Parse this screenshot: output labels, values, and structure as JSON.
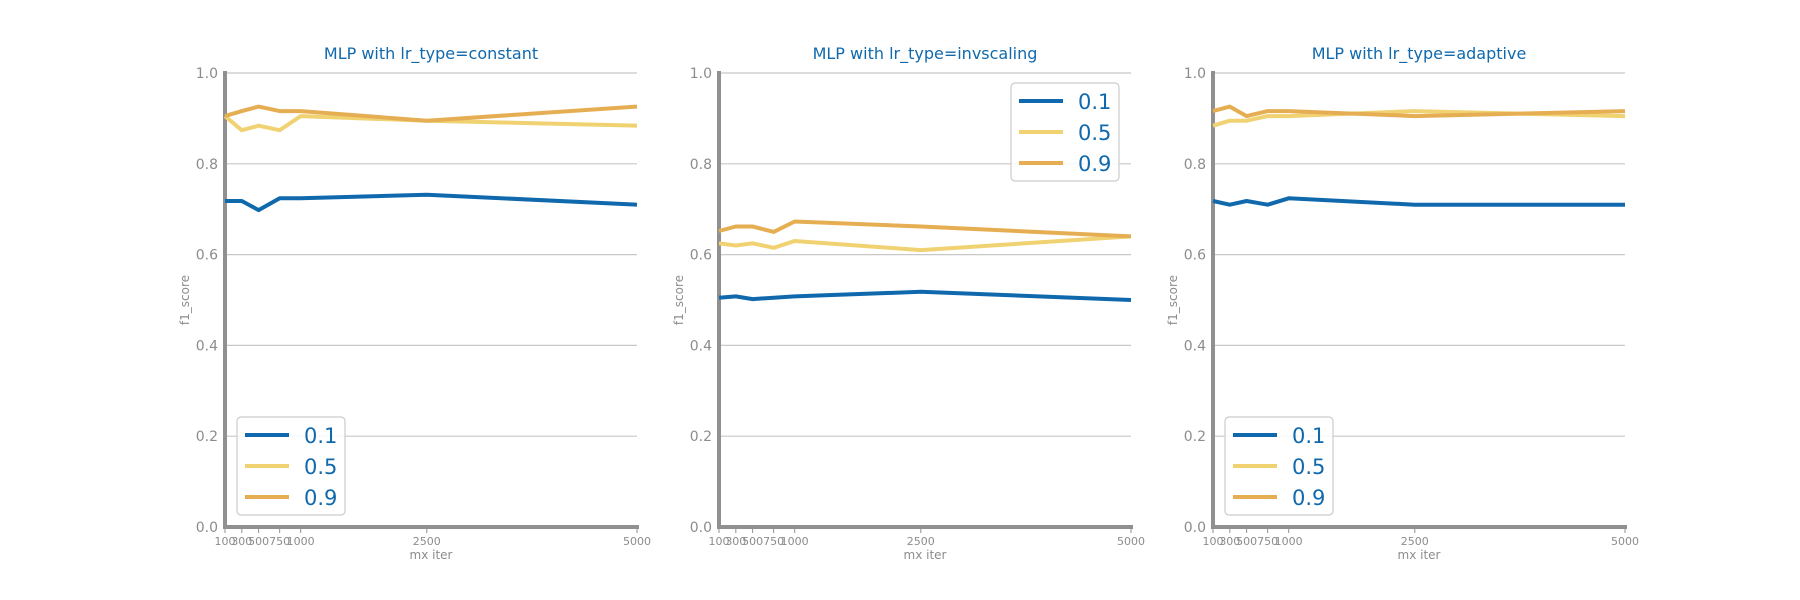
{
  "figure": {
    "background": "#ffffff",
    "title_color": "#1f77b4",
    "title_color_actual": "#1069ad",
    "axis_color": "#909090",
    "grid_color": "#c8c8c8",
    "tick_label_color": "#8c8c8c",
    "legend_text_color": "#1069ad",
    "legend_border_color": "#cccccc"
  },
  "chart_data": [
    {
      "type": "line",
      "title": "MLP with lr_type=constant",
      "xlabel": "mx iter",
      "ylabel": "f1_score",
      "x": [
        100,
        300,
        500,
        750,
        1000,
        2500,
        5000
      ],
      "xticks": [
        "100",
        "300",
        "500",
        "750",
        "1000",
        "2500",
        "5000"
      ],
      "xlim": [
        100,
        5000
      ],
      "ylim": [
        0.0,
        1.0
      ],
      "yticks": [
        "0.0",
        "0.2",
        "0.4",
        "0.6",
        "0.8",
        "1.0"
      ],
      "grid": "y",
      "legend_position": "lower-left",
      "series": [
        {
          "name": "0.1",
          "color": "#1069ad",
          "values": [
            0.718,
            0.718,
            0.698,
            0.724,
            0.724,
            0.732,
            0.71
          ]
        },
        {
          "name": "0.5",
          "color": "#f0d272",
          "values": [
            0.905,
            0.874,
            0.884,
            0.874,
            0.905,
            0.895,
            0.884
          ]
        },
        {
          "name": "0.9",
          "color": "#e6ae52",
          "values": [
            0.905,
            0.916,
            0.926,
            0.916,
            0.916,
            0.895,
            0.926
          ]
        }
      ]
    },
    {
      "type": "line",
      "title": "MLP with lr_type=invscaling",
      "xlabel": "mx iter",
      "ylabel": "f1_score",
      "x": [
        100,
        300,
        500,
        750,
        1000,
        2500,
        5000
      ],
      "xticks": [
        "100",
        "300",
        "500",
        "750",
        "1000",
        "2500",
        "5000"
      ],
      "xlim": [
        100,
        5000
      ],
      "ylim": [
        0.0,
        1.0
      ],
      "yticks": [
        "0.0",
        "0.2",
        "0.4",
        "0.6",
        "0.8",
        "1.0"
      ],
      "grid": "y",
      "legend_position": "upper-right",
      "series": [
        {
          "name": "0.1",
          "color": "#1069ad",
          "values": [
            0.505,
            0.508,
            0.502,
            0.505,
            0.508,
            0.518,
            0.5
          ]
        },
        {
          "name": "0.5",
          "color": "#f0d272",
          "values": [
            0.625,
            0.62,
            0.625,
            0.615,
            0.63,
            0.61,
            0.64
          ]
        },
        {
          "name": "0.9",
          "color": "#e6ae52",
          "values": [
            0.652,
            0.662,
            0.662,
            0.65,
            0.673,
            0.662,
            0.64
          ]
        }
      ]
    },
    {
      "type": "line",
      "title": "MLP with lr_type=adaptive",
      "xlabel": "mx iter",
      "ylabel": "f1_score",
      "x": [
        100,
        300,
        500,
        750,
        1000,
        2500,
        5000
      ],
      "xticks": [
        "100",
        "300",
        "500",
        "750",
        "1000",
        "2500",
        "5000"
      ],
      "xlim": [
        100,
        5000
      ],
      "ylim": [
        0.0,
        1.0
      ],
      "yticks": [
        "0.0",
        "0.2",
        "0.4",
        "0.6",
        "0.8",
        "1.0"
      ],
      "grid": "y",
      "legend_position": "lower-left",
      "series": [
        {
          "name": "0.1",
          "color": "#1069ad",
          "values": [
            0.718,
            0.71,
            0.718,
            0.71,
            0.724,
            0.71,
            0.71
          ]
        },
        {
          "name": "0.5",
          "color": "#f0d272",
          "values": [
            0.884,
            0.895,
            0.895,
            0.905,
            0.905,
            0.916,
            0.905
          ]
        },
        {
          "name": "0.9",
          "color": "#e6ae52",
          "values": [
            0.916,
            0.926,
            0.905,
            0.916,
            0.916,
            0.905,
            0.916
          ]
        }
      ]
    }
  ]
}
